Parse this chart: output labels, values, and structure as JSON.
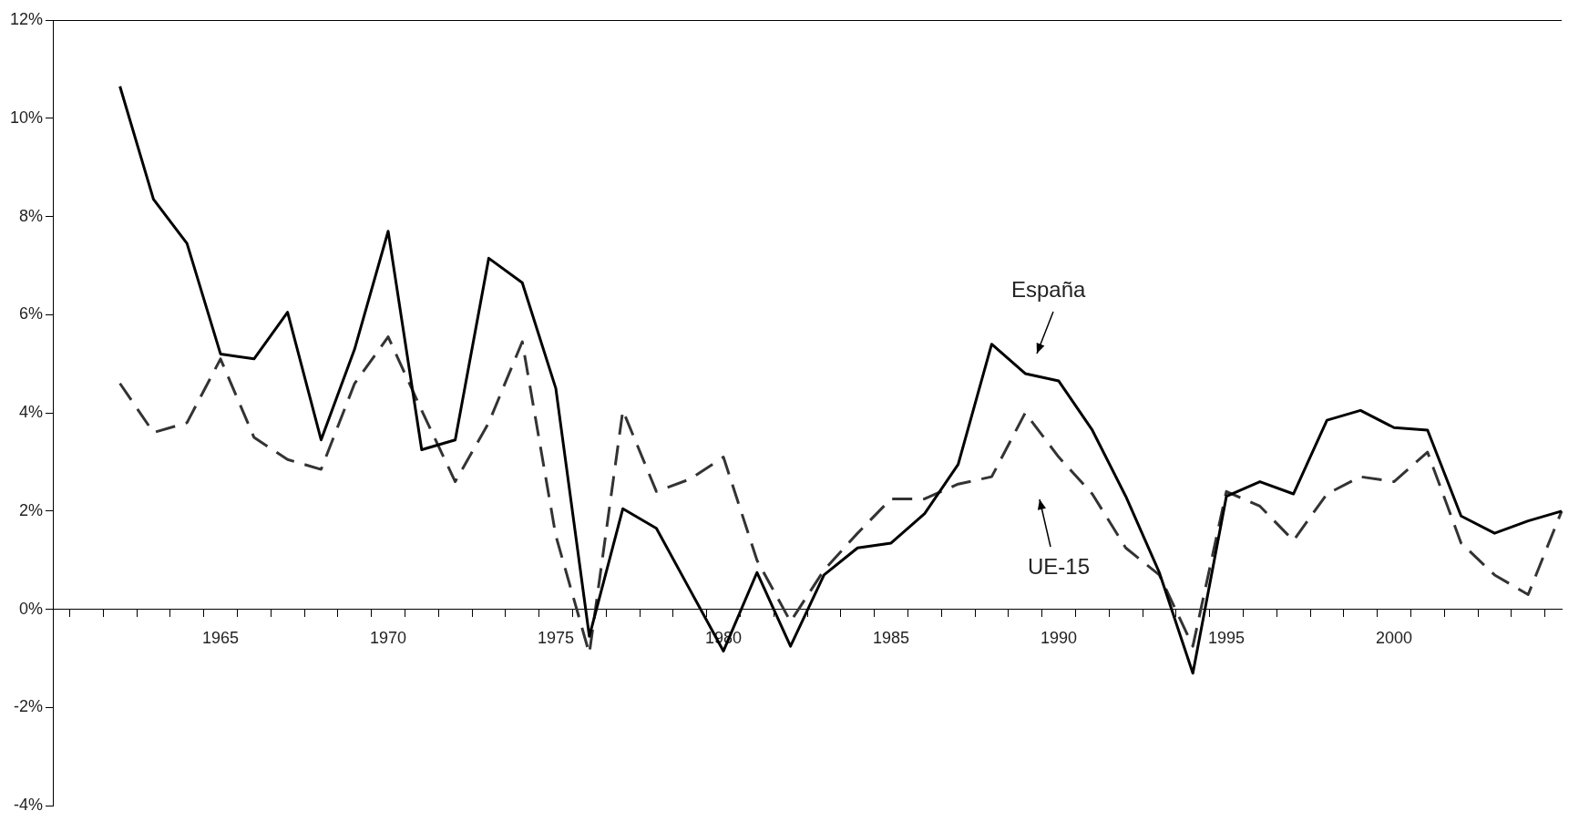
{
  "chart_data": {
    "type": "line",
    "categories": [
      null,
      null,
      null,
      null,
      null,
      "1965",
      null,
      null,
      null,
      null,
      "1970",
      null,
      null,
      null,
      null,
      "1975",
      null,
      null,
      null,
      null,
      "1980",
      null,
      null,
      null,
      null,
      "1985",
      null,
      null,
      null,
      null,
      "1990",
      null,
      null,
      null,
      null,
      "1995",
      null,
      null,
      null,
      null,
      "2000",
      null,
      null,
      null,
      null,
      null
    ],
    "series": [
      {
        "color": "#000000",
        "line_style": "solid",
        "values": [
          null,
          null,
          10.65,
          8.35,
          7.45,
          5.2,
          5.1,
          6.05,
          3.45,
          5.3,
          7.7,
          3.25,
          3.45,
          7.15,
          6.65,
          4.5,
          -0.55,
          2.05,
          1.65,
          0.4,
          -0.85,
          0.75,
          -0.75,
          0.7,
          1.25,
          1.35,
          1.95,
          2.95,
          5.4,
          4.8,
          4.65,
          3.65,
          2.3,
          0.75,
          -1.3,
          2.3,
          2.6,
          2.35,
          3.85,
          4.05,
          3.7,
          3.65,
          1.9,
          1.55,
          1.8,
          2.0
        ]
      },
      {
        "color": "#333333",
        "line_style": "dashed",
        "values": [
          null,
          null,
          4.6,
          3.6,
          3.8,
          5.1,
          3.5,
          3.05,
          2.85,
          4.6,
          5.55,
          4.05,
          2.6,
          3.8,
          5.45,
          1.5,
          -0.9,
          4.05,
          2.4,
          2.65,
          3.1,
          1.0,
          -0.25,
          0.8,
          1.55,
          2.25,
          2.25,
          2.55,
          2.7,
          4.0,
          3.1,
          2.35,
          1.25,
          0.7,
          -0.75,
          2.4,
          2.1,
          1.4,
          2.35,
          2.7,
          2.6,
          3.2,
          1.35,
          0.7,
          0.3,
          2.0
        ]
      }
    ],
    "ylim": [
      -4,
      12
    ],
    "yticks": [
      {
        "value": -4,
        "label": "-4%"
      },
      {
        "value": -2,
        "label": "-2%"
      },
      {
        "value": 0,
        "label": "0%"
      },
      {
        "value": 2,
        "label": "2%"
      },
      {
        "value": 4,
        "label": "4%"
      },
      {
        "value": 6,
        "label": "6%"
      },
      {
        "value": 8,
        "label": "8%"
      },
      {
        "value": 10,
        "label": "10%"
      },
      {
        "value": 12,
        "label": "12%"
      }
    ],
    "annotations": [
      "España",
      "UE-15"
    ],
    "grid": false,
    "legend": false,
    "marker": "none"
  }
}
